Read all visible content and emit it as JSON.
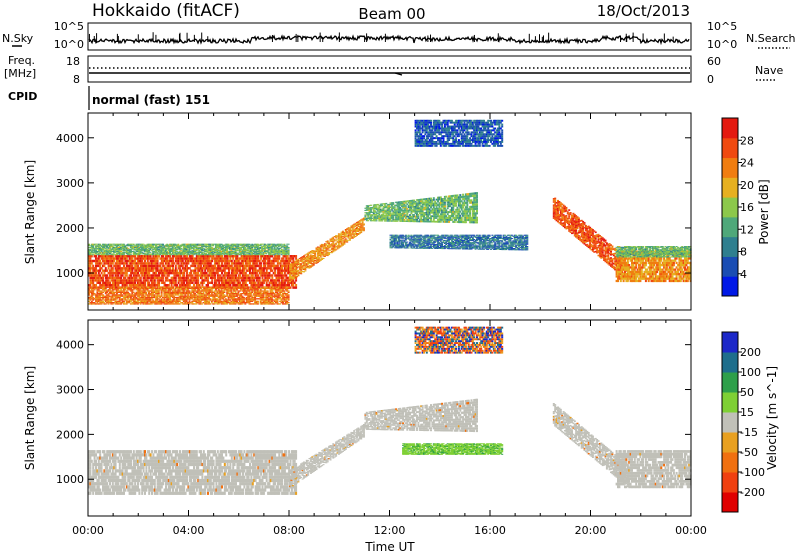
{
  "header": {
    "station": "Hokkaido (fitACF)",
    "beam": "Beam 00",
    "date": "18/Oct/2013"
  },
  "nsky_panel": {
    "label": "N.Sky",
    "left_ticks": [
      "10^5",
      "10^0"
    ],
    "right_ticks": [
      "10^5",
      "10^0"
    ],
    "right_label": "N.Search"
  },
  "freq_panel": {
    "label_line1": "Freq.",
    "label_line2": "[MHz]",
    "left_ticks": [
      "18",
      "8"
    ],
    "right_ticks": [
      "60",
      "0"
    ],
    "right_label": "Nave"
  },
  "cpid_panel": {
    "label": "CPID",
    "mode_text": "normal (fast) 151"
  },
  "colors": {
    "power_scale": [
      "#0019e6",
      "#1a4db3",
      "#2f7f8f",
      "#4fa87a",
      "#8cc84b",
      "#e6b020",
      "#f07d10",
      "#f04a10",
      "#e41a10"
    ],
    "velocity_scale": [
      "#1c28c8",
      "#1e6e8c",
      "#2e9f4a",
      "#7ed034",
      "#c0c0b8",
      "#e8a020",
      "#f07010",
      "#f04010",
      "#e00000"
    ],
    "velocity_ground": "#c0c0b8"
  },
  "chart_data": [
    {
      "type": "heatmap",
      "title": "Power",
      "ylabel": "Slant Range [km]",
      "xlabel": "",
      "xlim": [
        0,
        24
      ],
      "ylim": [
        180,
        4550
      ],
      "x_ticks": [],
      "y_ticks": [
        1000,
        2000,
        3000,
        4000
      ],
      "colorbar": {
        "label": "Power [dB]",
        "min": 0,
        "max": 32,
        "ticks": [
          "4",
          "8",
          "12",
          "16",
          "20",
          "24",
          "28"
        ]
      },
      "echo_regions": [
        {
          "name": "ground-scatter-band",
          "time": [
            0,
            8.3
          ],
          "range_lower": [
            650,
            650
          ],
          "range_upper": [
            1400,
            1400
          ],
          "power_db": 27
        },
        {
          "name": "low-range-echoes",
          "time": [
            0,
            8
          ],
          "range_lower": [
            300,
            300
          ],
          "range_upper": [
            700,
            700
          ],
          "power_db": 24
        },
        {
          "name": "rising-ramp",
          "time": [
            8.0,
            11.0
          ],
          "range_lower": [
            800,
            1950
          ],
          "range_upper": [
            1200,
            2250
          ],
          "power_db": 22
        },
        {
          "name": "upper-arc",
          "time": [
            11.0,
            15.5
          ],
          "range_lower": [
            2150,
            2100
          ],
          "range_upper": [
            2500,
            2800
          ],
          "power_db": 14
        },
        {
          "name": "lower-arc",
          "time": [
            12.0,
            17.5
          ],
          "range_lower": [
            1550,
            1500
          ],
          "range_upper": [
            1850,
            1850
          ],
          "power_db": 8
        },
        {
          "name": "descending-ramp",
          "time": [
            18.5,
            21.5
          ],
          "range_lower": [
            2200,
            800
          ],
          "range_upper": [
            2700,
            1300
          ],
          "power_db": 26
        },
        {
          "name": "evening-band",
          "time": [
            21.0,
            24.0
          ],
          "range_lower": [
            800,
            800
          ],
          "range_upper": [
            1500,
            1500
          ],
          "power_db": 22
        },
        {
          "name": "upper-patches",
          "time": [
            13.0,
            16.5
          ],
          "range_lower": [
            3800,
            3800
          ],
          "range_upper": [
            4400,
            4400
          ],
          "power_db": 6
        },
        {
          "name": "midrange-band",
          "time": [
            0,
            8
          ],
          "range_lower": [
            1400,
            1400
          ],
          "range_upper": [
            1650,
            1650
          ],
          "power_db": 14
        },
        {
          "name": "evening-midrange-band",
          "time": [
            21.0,
            24.0
          ],
          "range_lower": [
            1350,
            1350
          ],
          "range_upper": [
            1600,
            1600
          ],
          "power_db": 14
        }
      ]
    },
    {
      "type": "heatmap",
      "title": "Velocity",
      "ylabel": "Slant Range [km]",
      "xlabel": "Time UT",
      "xlim": [
        0,
        24
      ],
      "ylim": [
        180,
        4550
      ],
      "x_ticks": [
        "00:00",
        "04:00",
        "08:00",
        "12:00",
        "16:00",
        "20:00",
        "00:00"
      ],
      "y_ticks": [
        1000,
        2000,
        3000,
        4000
      ],
      "colorbar": {
        "label": "Velocity [m s^-1]",
        "ticks": [
          "200",
          "100",
          "50",
          "15",
          "-15",
          "-50",
          "-100",
          "-200"
        ]
      },
      "echo_regions": [
        {
          "name": "ground-scatter-band",
          "time": [
            0,
            8.3
          ],
          "range_lower": [
            650,
            650
          ],
          "range_upper": [
            1650,
            1650
          ],
          "velocity": 0
        },
        {
          "name": "rising-ramp",
          "time": [
            8.0,
            11.0
          ],
          "range_lower": [
            800,
            1950
          ],
          "range_upper": [
            1200,
            2250
          ],
          "velocity": 0
        },
        {
          "name": "upper-arc",
          "time": [
            11.0,
            15.5
          ],
          "range_lower": [
            2100,
            2050
          ],
          "range_upper": [
            2500,
            2800
          ],
          "velocity": 0
        },
        {
          "name": "green-ionospheric-arc",
          "time": [
            12.5,
            16.5
          ],
          "range_lower": [
            1550,
            1550
          ],
          "range_upper": [
            1800,
            1800
          ],
          "velocity": 40
        },
        {
          "name": "descending-ramp",
          "time": [
            18.5,
            21.5
          ],
          "range_lower": [
            2200,
            800
          ],
          "range_upper": [
            2700,
            1300
          ],
          "velocity": 0
        },
        {
          "name": "evening-band",
          "time": [
            21.0,
            24.0
          ],
          "range_lower": [
            800,
            800
          ],
          "range_upper": [
            1650,
            1650
          ],
          "velocity": 0
        },
        {
          "name": "upper-patches",
          "time": [
            13.0,
            16.5
          ],
          "range_lower": [
            3800,
            3800
          ],
          "range_upper": [
            4400,
            4400
          ],
          "velocity": -100
        }
      ]
    }
  ]
}
